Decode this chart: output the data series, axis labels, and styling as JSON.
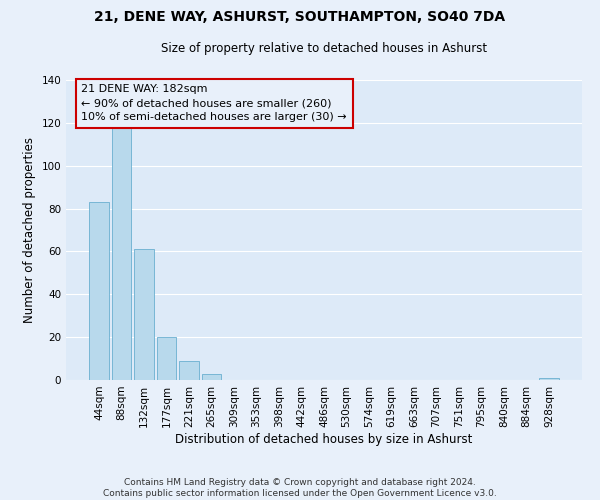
{
  "title": "21, DENE WAY, ASHURST, SOUTHAMPTON, SO40 7DA",
  "subtitle": "Size of property relative to detached houses in Ashurst",
  "xlabel": "Distribution of detached houses by size in Ashurst",
  "ylabel": "Number of detached properties",
  "bar_labels": [
    "44sqm",
    "88sqm",
    "132sqm",
    "177sqm",
    "221sqm",
    "265sqm",
    "309sqm",
    "353sqm",
    "398sqm",
    "442sqm",
    "486sqm",
    "530sqm",
    "574sqm",
    "619sqm",
    "663sqm",
    "707sqm",
    "751sqm",
    "795sqm",
    "840sqm",
    "884sqm",
    "928sqm"
  ],
  "bar_values": [
    83,
    118,
    61,
    20,
    9,
    3,
    0,
    0,
    0,
    0,
    0,
    0,
    0,
    0,
    0,
    0,
    0,
    0,
    0,
    0,
    1
  ],
  "bar_color": "#b8d9ec",
  "bar_edge_color": "#6aafd0",
  "annotation_box_edge_color": "#cc0000",
  "annotation_lines": [
    "21 DENE WAY: 182sqm",
    "← 90% of detached houses are smaller (260)",
    "10% of semi-detached houses are larger (30) →"
  ],
  "ylim": [
    0,
    140
  ],
  "yticks": [
    0,
    20,
    40,
    60,
    80,
    100,
    120,
    140
  ],
  "footer_lines": [
    "Contains HM Land Registry data © Crown copyright and database right 2024.",
    "Contains public sector information licensed under the Open Government Licence v3.0."
  ],
  "bg_color": "#e8f0fa",
  "plot_bg_color": "#ddeaf8",
  "grid_color": "#ffffff",
  "title_fontsize": 10,
  "subtitle_fontsize": 8.5,
  "axis_label_fontsize": 8.5,
  "tick_fontsize": 7.5,
  "footer_fontsize": 6.5,
  "annotation_fontsize": 8
}
